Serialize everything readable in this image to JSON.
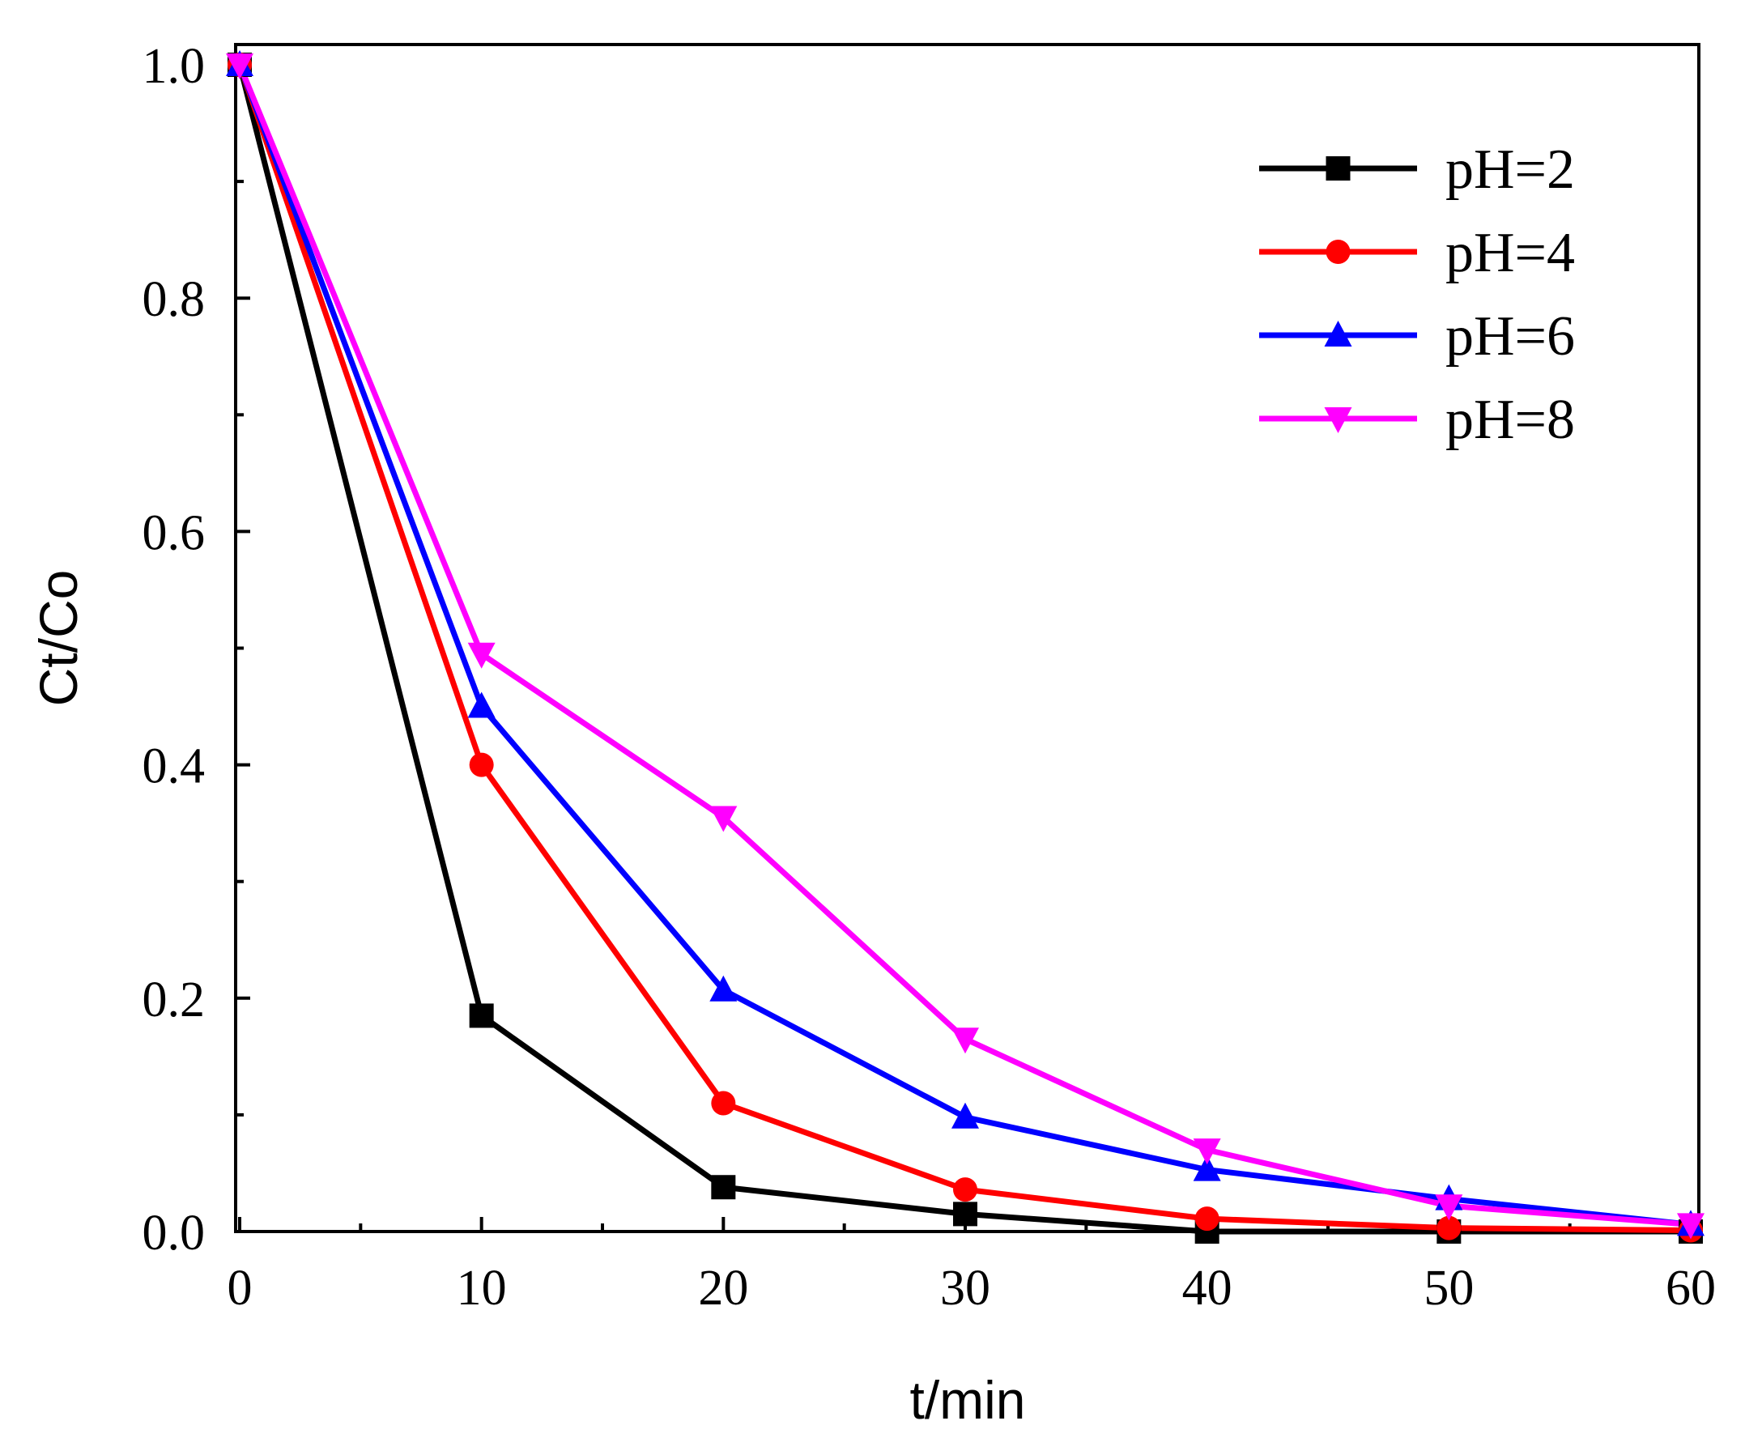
{
  "chart_data": {
    "type": "line",
    "title": "",
    "xlabel": "t/min",
    "ylabel": "Ct/Co",
    "xlim": [
      0,
      60
    ],
    "ylim": [
      0,
      1.0
    ],
    "x_ticks": [
      "0",
      "10",
      "20",
      "30",
      "40",
      "50",
      "60"
    ],
    "y_ticks": [
      "0.0",
      "0.2",
      "0.4",
      "0.6",
      "0.8",
      "1.0"
    ],
    "x_tick_values": [
      0,
      10,
      20,
      30,
      40,
      50,
      60
    ],
    "y_tick_values": [
      0,
      0.2,
      0.4,
      0.6,
      0.8,
      1.0
    ],
    "grid": false,
    "legend_position": "top-right",
    "series": [
      {
        "name": "pH=2",
        "color": "#000000",
        "marker": "square",
        "x": [
          0,
          10,
          20,
          30,
          40,
          50,
          60
        ],
        "values": [
          1.0,
          0.185,
          0.038,
          0.015,
          0.0,
          0.0,
          0.0
        ]
      },
      {
        "name": "pH=4",
        "color": "#ff0000",
        "marker": "circle",
        "x": [
          0,
          10,
          20,
          30,
          40,
          50,
          60
        ],
        "values": [
          1.0,
          0.4,
          0.11,
          0.036,
          0.011,
          0.003,
          0.001
        ]
      },
      {
        "name": "pH=6",
        "color": "#0000ff",
        "marker": "triangle-up",
        "x": [
          0,
          10,
          20,
          30,
          40,
          50,
          60
        ],
        "values": [
          1.0,
          0.45,
          0.207,
          0.098,
          0.053,
          0.028,
          0.006
        ]
      },
      {
        "name": "pH=8",
        "color": "#ff00ff",
        "marker": "triangle-down",
        "x": [
          0,
          10,
          20,
          30,
          40,
          50,
          60
        ],
        "values": [
          1.0,
          0.495,
          0.355,
          0.165,
          0.07,
          0.022,
          0.006
        ]
      }
    ]
  }
}
